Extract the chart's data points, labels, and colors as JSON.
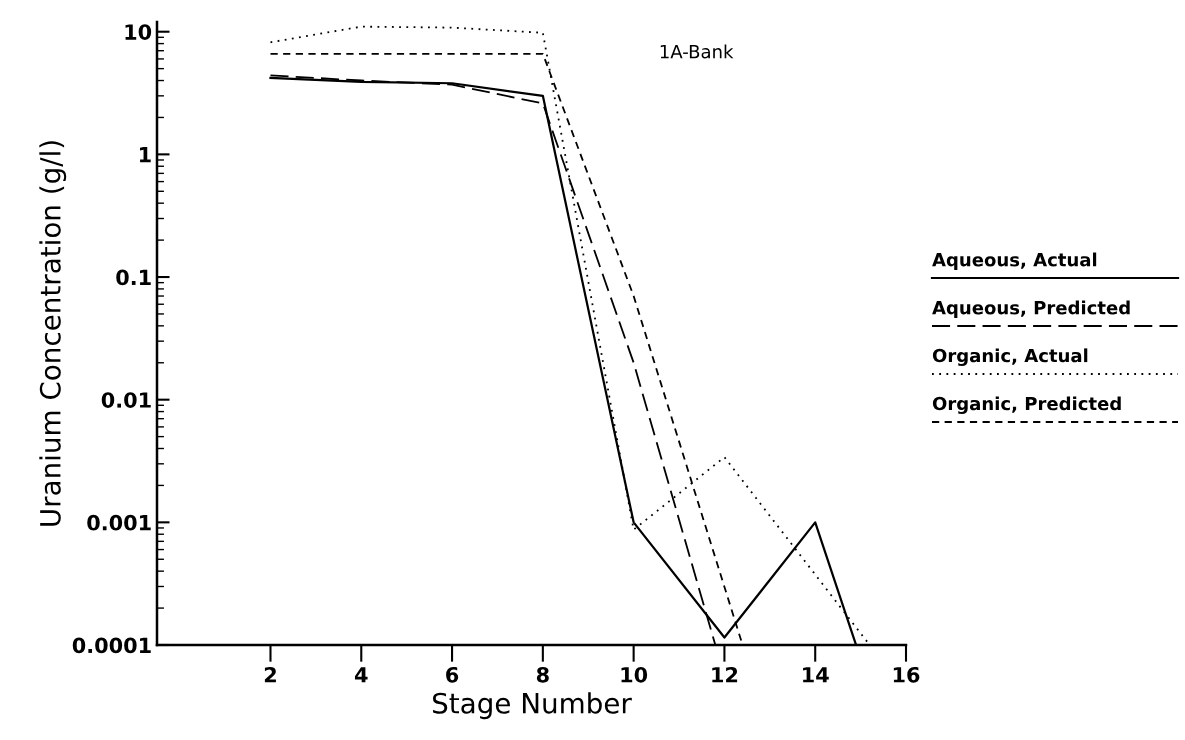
{
  "chart_data": {
    "type": "line",
    "xlabel": "Stage Number",
    "ylabel": "Uranium Concentration (g/l)",
    "annotations": [
      "1A-Bank"
    ],
    "log": "y",
    "xlim": [
      -0.5,
      16
    ],
    "xticks": [
      2,
      4,
      6,
      8,
      10,
      12,
      14,
      16
    ],
    "ylim": [
      0.0001,
      12
    ],
    "yticks": [
      {
        "value": 10,
        "label": "10"
      },
      {
        "value": 1,
        "label": "1"
      },
      {
        "value": 0.1,
        "label": "0.1"
      },
      {
        "value": 0.01,
        "label": "0.01"
      },
      {
        "value": 0.001,
        "label": "0.001"
      },
      {
        "value": 0.0001,
        "label": "0.0001"
      }
    ],
    "grid": false,
    "legend": "right",
    "marker": "none",
    "series": [
      {
        "name": "Aqueous, Actual",
        "color": "#000000",
        "line_style": "solid",
        "x": [
          2,
          4,
          6,
          8,
          10,
          12,
          14,
          14.9
        ],
        "values": [
          4.2,
          3.9,
          3.8,
          3.0,
          0.001,
          0.000115,
          0.001,
          0.0001
        ]
      },
      {
        "name": "Aqueous, Predicted",
        "color": "#000000",
        "line_style": "longdash",
        "x": [
          2,
          4,
          6,
          8,
          10,
          11.8
        ],
        "values": [
          4.4,
          4.0,
          3.7,
          2.6,
          0.02,
          0.0001
        ]
      },
      {
        "name": "Organic, Actual",
        "color": "#000000",
        "line_style": "dotted",
        "x": [
          2,
          4,
          6,
          8,
          10,
          12,
          15.2
        ],
        "values": [
          8.2,
          11,
          10.8,
          9.8,
          0.00087,
          0.0034,
          0.0001
        ]
      },
      {
        "name": "Organic, Predicted",
        "color": "#000000",
        "line_style": "dashed",
        "x": [
          2,
          4,
          6,
          8,
          10,
          12.4
        ],
        "values": [
          6.6,
          6.6,
          6.6,
          6.6,
          0.07,
          0.0001
        ]
      }
    ]
  }
}
